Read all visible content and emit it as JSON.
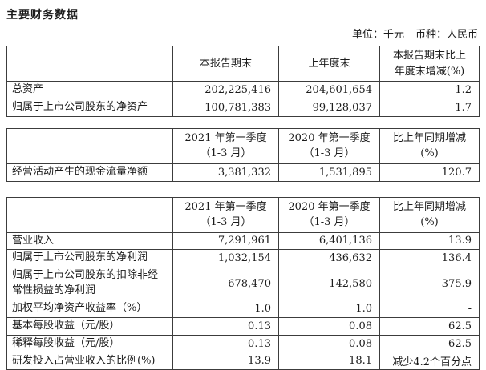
{
  "document": {
    "title": "主要财务数据",
    "unit_label": "单位：千元",
    "currency_label": "币种：人民币"
  },
  "colors": {
    "background": "#ffffff",
    "text": "#1c1c1c",
    "table_border": "#3c3c3c"
  },
  "tables": [
    {
      "name": "period-end-balance-table",
      "headers": {
        "col2": [
          "本报告期末",
          ""
        ],
        "col3": [
          "上年度末",
          ""
        ],
        "col4": [
          "本报告期末比上",
          "年度末增减(%)"
        ]
      },
      "rows": [
        {
          "label": "总资产",
          "current": "202,225,416",
          "prior": "204,601,654",
          "change": "-1.2"
        },
        {
          "label": "归属于上市公司股东的净资产",
          "current": "100,781,383",
          "prior": "99,128,037",
          "change": "1.7"
        }
      ]
    },
    {
      "name": "cash-flow-table",
      "headers": {
        "col2": [
          "2021 年第一季度",
          "（1-3 月）"
        ],
        "col3": [
          "2020 年第一季度",
          "（1-3 月）"
        ],
        "col4": [
          "比上年同期增减",
          "(%)"
        ]
      },
      "rows": [
        {
          "label": "经营活动产生的现金流量净额",
          "current": "3,381,332",
          "prior": "1,531,895",
          "change": "120.7"
        }
      ]
    },
    {
      "name": "operating-results-table",
      "headers": {
        "col2": [
          "2021 年第一季度",
          "（1-3 月）"
        ],
        "col3": [
          "2020 年第一季度",
          "（1-3 月）"
        ],
        "col4": [
          "比上年同期增减",
          "(%)"
        ]
      },
      "rows": [
        {
          "label": "营业收入",
          "current": "7,291,961",
          "prior": "6,401,136",
          "change": "13.9"
        },
        {
          "label": "归属于上市公司股东的净利润",
          "current": "1,032,154",
          "prior": "436,632",
          "change": "136.4"
        },
        {
          "label": "归属于上市公司股东的扣除非经常性损益的净利润",
          "current": "678,470",
          "prior": "142,580",
          "change": "375.9"
        },
        {
          "label": "加权平均净资产收益率（%）",
          "current": "1.0",
          "prior": "1.0",
          "change": "-"
        },
        {
          "label": "基本每股收益（元/股）",
          "current": "0.13",
          "prior": "0.08",
          "change": "62.5"
        },
        {
          "label": "稀释每股收益（元/股）",
          "current": "0.13",
          "prior": "0.08",
          "change": "62.5"
        },
        {
          "label": "研发投入占营业收入的比例(%)",
          "current": "13.9",
          "prior": "18.1",
          "change": "减少4.2个百分点"
        }
      ]
    }
  ]
}
